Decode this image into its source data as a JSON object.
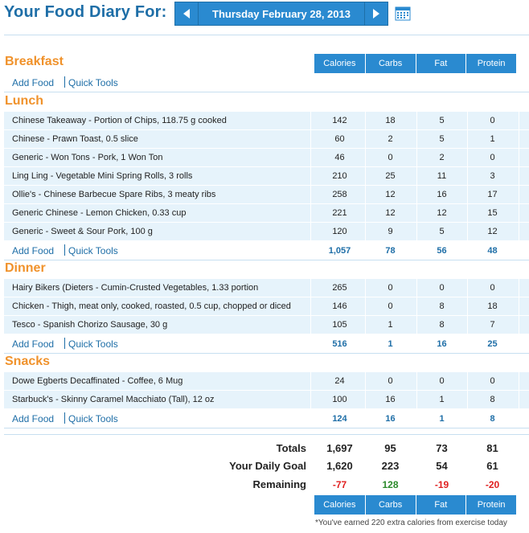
{
  "header": {
    "title": "Your Food Diary For:",
    "date": "Thursday February 28, 2013",
    "prev_icon": "arrow-left-icon",
    "next_icon": "arrow-right-icon",
    "calendar_icon": "calendar-icon"
  },
  "columns": [
    "Calories",
    "Carbs",
    "Fat",
    "Protein"
  ],
  "links": {
    "add_food": "Add Food",
    "quick_tools": "Quick Tools"
  },
  "meals": {
    "breakfast": {
      "title": "Breakfast",
      "entries": [],
      "totals": [
        "",
        "",
        "",
        ""
      ]
    },
    "lunch": {
      "title": "Lunch",
      "entries": [
        {
          "name": "Chinese Takeaway - Portion of Chips, 118.75 g cooked",
          "calories": "142",
          "carbs": "18",
          "fat": "5",
          "protein": "0"
        },
        {
          "name": "Chinese - Prawn Toast, 0.5 slice",
          "calories": "60",
          "carbs": "2",
          "fat": "5",
          "protein": "1"
        },
        {
          "name": "Generic - Won Tons - Pork, 1 Won Ton",
          "calories": "46",
          "carbs": "0",
          "fat": "2",
          "protein": "0"
        },
        {
          "name": "Ling Ling - Vegetable Mini Spring Rolls, 3 rolls",
          "calories": "210",
          "carbs": "25",
          "fat": "11",
          "protein": "3"
        },
        {
          "name": "Ollie's - Chinese Barbecue Spare Ribs, 3 meaty ribs",
          "calories": "258",
          "carbs": "12",
          "fat": "16",
          "protein": "17"
        },
        {
          "name": "Generic Chinese - Lemon Chicken, 0.33 cup",
          "calories": "221",
          "carbs": "12",
          "fat": "12",
          "protein": "15"
        },
        {
          "name": "Generic - Sweet & Sour Pork, 100 g",
          "calories": "120",
          "carbs": "9",
          "fat": "5",
          "protein": "12"
        }
      ],
      "totals": [
        "1,057",
        "78",
        "56",
        "48"
      ]
    },
    "dinner": {
      "title": "Dinner",
      "entries": [
        {
          "name": "Hairy Bikers (Dieters - Cumin-Crusted Vegetables, 1.33 portion",
          "calories": "265",
          "carbs": "0",
          "fat": "0",
          "protein": "0"
        },
        {
          "name": "Chicken - Thigh, meat only, cooked, roasted, 0.5 cup, chopped or diced",
          "calories": "146",
          "carbs": "0",
          "fat": "8",
          "protein": "18"
        },
        {
          "name": "Tesco - Spanish Chorizo Sausage, 30 g",
          "calories": "105",
          "carbs": "1",
          "fat": "8",
          "protein": "7"
        }
      ],
      "totals": [
        "516",
        "1",
        "16",
        "25"
      ]
    },
    "snacks": {
      "title": "Snacks",
      "entries": [
        {
          "name": "Dowe Egberts Decaffinated - Coffee, 6 Mug",
          "calories": "24",
          "carbs": "0",
          "fat": "0",
          "protein": "0"
        },
        {
          "name": "Starbuck's - Skinny Caramel Macchiato (Tall), 12 oz",
          "calories": "100",
          "carbs": "16",
          "fat": "1",
          "protein": "8"
        }
      ],
      "totals": [
        "124",
        "16",
        "1",
        "8"
      ]
    }
  },
  "summary": {
    "totals_label": "Totals",
    "totals": [
      "1,697",
      "95",
      "73",
      "81"
    ],
    "goal_label": "Your Daily Goal",
    "goal": [
      "1,620",
      "223",
      "54",
      "61"
    ],
    "remaining_label": "Remaining",
    "remaining": [
      "-77",
      "128",
      "-19",
      "-20"
    ]
  },
  "footnote": "*You've earned 220 extra calories from exercise today",
  "colors": {
    "brand_blue": "#2a8ad0",
    "title_blue": "#1e6ea7",
    "section_orange": "#f0922b",
    "row_bg": "#e6f3fb",
    "over_red": "#e02020",
    "under_green": "#2b8a2b"
  }
}
